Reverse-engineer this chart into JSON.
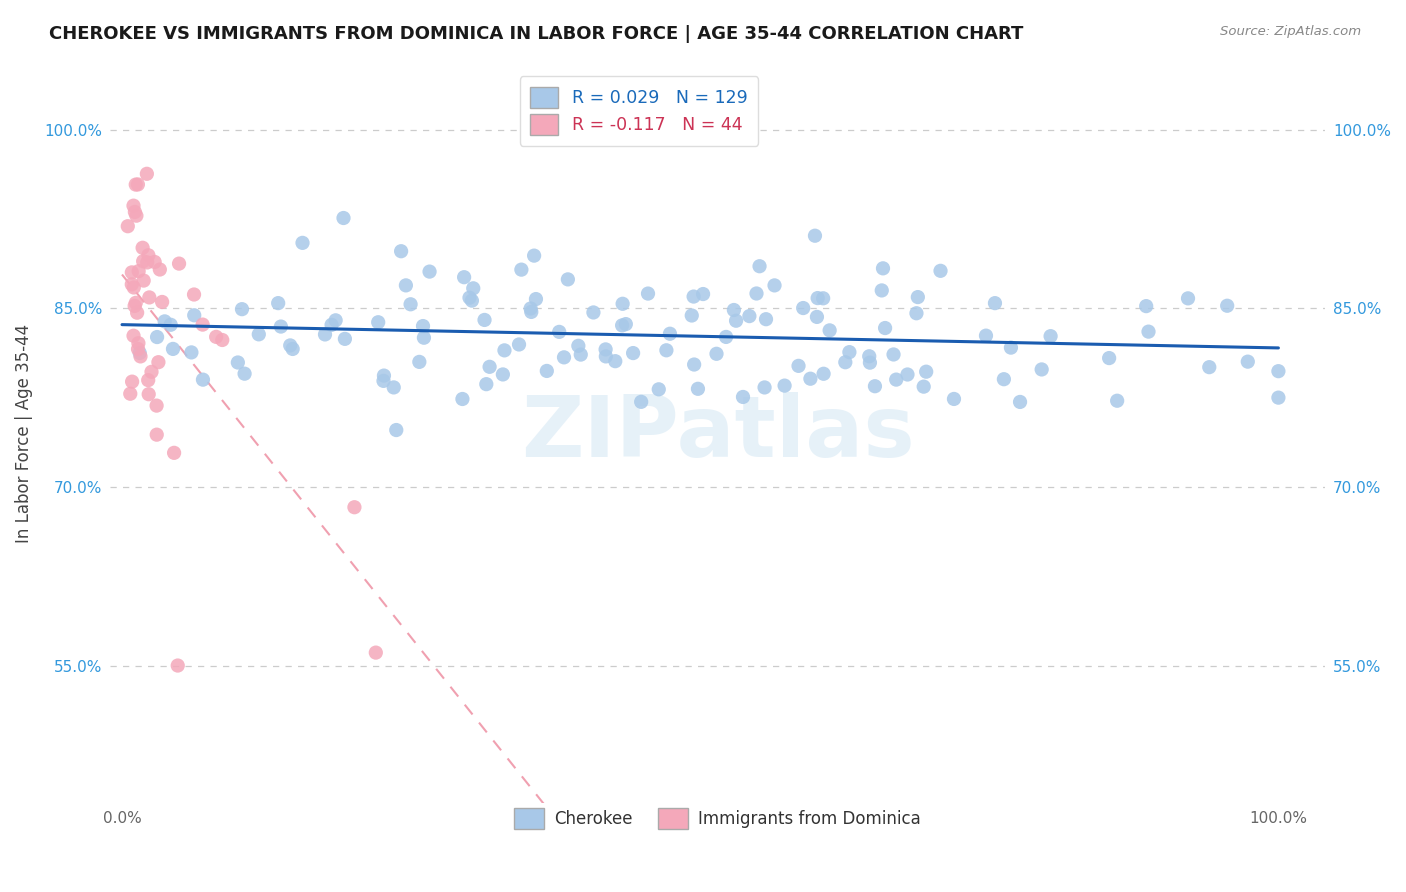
{
  "title": "CHEROKEE VS IMMIGRANTS FROM DOMINICA IN LABOR FORCE | AGE 35-44 CORRELATION CHART",
  "source": "Source: ZipAtlas.com",
  "ylabel": "In Labor Force | Age 35-44",
  "xlim": [
    -0.01,
    1.04
  ],
  "ylim": [
    0.435,
    1.055
  ],
  "blue_R": 0.029,
  "blue_N": 129,
  "pink_R": -0.117,
  "pink_N": 44,
  "blue_color": "#a8c8e8",
  "pink_color": "#f4a8ba",
  "blue_line_color": "#1a5cb0",
  "pink_line_color": "#f0a0b0",
  "legend_blue_label": "Cherokee",
  "legend_pink_label": "Immigrants from Dominica",
  "watermark": "ZIPatlas",
  "yticks": [
    0.55,
    0.7,
    0.85,
    1.0
  ],
  "xticks": [
    0.0,
    1.0
  ],
  "title_fontsize": 13,
  "axis_tick_fontsize": 11,
  "legend_text_color": "#1a6aba",
  "legend_pink_text_color": "#cc3355",
  "grid_color": "#cccccc",
  "blue_scatter_x": [
    0.02,
    0.02,
    0.03,
    0.04,
    0.05,
    0.06,
    0.07,
    0.08,
    0.09,
    0.1,
    0.11,
    0.12,
    0.13,
    0.14,
    0.15,
    0.16,
    0.17,
    0.18,
    0.19,
    0.2,
    0.21,
    0.22,
    0.23,
    0.24,
    0.25,
    0.26,
    0.27,
    0.28,
    0.29,
    0.3,
    0.31,
    0.32,
    0.33,
    0.34,
    0.35,
    0.36,
    0.37,
    0.38,
    0.39,
    0.4,
    0.41,
    0.42,
    0.43,
    0.44,
    0.45,
    0.46,
    0.47,
    0.48,
    0.49,
    0.5,
    0.51,
    0.52,
    0.53,
    0.54,
    0.55,
    0.56,
    0.57,
    0.58,
    0.59,
    0.6,
    0.61,
    0.62,
    0.63,
    0.64,
    0.65,
    0.66,
    0.67,
    0.68,
    0.69,
    0.7,
    0.22,
    0.24,
    0.26,
    0.28,
    0.3,
    0.32,
    0.34,
    0.36,
    0.38,
    0.4,
    0.42,
    0.44,
    0.46,
    0.48,
    0.5,
    0.52,
    0.54,
    0.56,
    0.58,
    0.6,
    0.62,
    0.64,
    0.66,
    0.68,
    0.7,
    0.72,
    0.74,
    0.76,
    0.78,
    0.8,
    0.25,
    0.3,
    0.35,
    0.4,
    0.45,
    0.5,
    0.55,
    0.6,
    0.65,
    0.7,
    0.75,
    0.8,
    0.85,
    0.88,
    0.9,
    0.92,
    0.94,
    0.96,
    0.98,
    1.0,
    0.16,
    0.2,
    0.35,
    0.55,
    0.6,
    0.7,
    0.75,
    0.85,
    1.0
  ],
  "blue_scatter_y": [
    0.832,
    0.828,
    0.835,
    0.829,
    0.831,
    0.84,
    0.836,
    0.842,
    0.838,
    0.844,
    0.84,
    0.846,
    0.842,
    0.848,
    0.844,
    0.85,
    0.841,
    0.843,
    0.845,
    0.847,
    0.832,
    0.838,
    0.834,
    0.84,
    0.836,
    0.842,
    0.838,
    0.844,
    0.84,
    0.846,
    0.832,
    0.838,
    0.83,
    0.836,
    0.832,
    0.838,
    0.83,
    0.836,
    0.832,
    0.838,
    0.83,
    0.836,
    0.832,
    0.838,
    0.83,
    0.836,
    0.832,
    0.838,
    0.83,
    0.836,
    0.832,
    0.838,
    0.83,
    0.836,
    0.832,
    0.838,
    0.83,
    0.836,
    0.832,
    0.838,
    0.83,
    0.836,
    0.832,
    0.838,
    0.83,
    0.836,
    0.832,
    0.838,
    0.83,
    0.836,
    0.78,
    0.79,
    0.8,
    0.81,
    0.82,
    0.81,
    0.8,
    0.79,
    0.81,
    0.82,
    0.81,
    0.8,
    0.79,
    0.8,
    0.79,
    0.8,
    0.79,
    0.8,
    0.79,
    0.8,
    0.79,
    0.8,
    0.79,
    0.8,
    0.79,
    0.8,
    0.79,
    0.8,
    0.79,
    0.8,
    0.88,
    0.87,
    0.86,
    0.85,
    0.86,
    0.85,
    0.84,
    0.83,
    0.82,
    0.81,
    0.82,
    0.83,
    0.82,
    0.82,
    0.83,
    0.84,
    0.83,
    0.82,
    0.82,
    0.8,
    0.94,
    0.93,
    0.9,
    0.89,
    0.9,
    0.88,
    0.83,
    0.82,
    0.8
  ],
  "pink_scatter_x": [
    0.01,
    0.01,
    0.01,
    0.01,
    0.01,
    0.01,
    0.01,
    0.01,
    0.01,
    0.01,
    0.01,
    0.01,
    0.01,
    0.01,
    0.02,
    0.02,
    0.02,
    0.02,
    0.02,
    0.02,
    0.02,
    0.03,
    0.03,
    0.03,
    0.04,
    0.05,
    0.06,
    0.07,
    0.08,
    0.09,
    0.02,
    0.02,
    0.03,
    0.03,
    0.01,
    0.01,
    0.01,
    0.02,
    0.02,
    0.03,
    0.04,
    0.05,
    0.2,
    0.22
  ],
  "pink_scatter_y": [
    0.96,
    0.95,
    0.94,
    0.93,
    0.92,
    0.91,
    0.9,
    0.89,
    0.88,
    0.87,
    0.86,
    0.85,
    0.84,
    0.83,
    0.92,
    0.91,
    0.9,
    0.89,
    0.88,
    0.87,
    0.86,
    0.9,
    0.88,
    0.86,
    0.88,
    0.87,
    0.85,
    0.84,
    0.83,
    0.82,
    0.82,
    0.81,
    0.8,
    0.79,
    0.81,
    0.8,
    0.79,
    0.78,
    0.77,
    0.76,
    0.75,
    0.56,
    0.7,
    0.57
  ]
}
